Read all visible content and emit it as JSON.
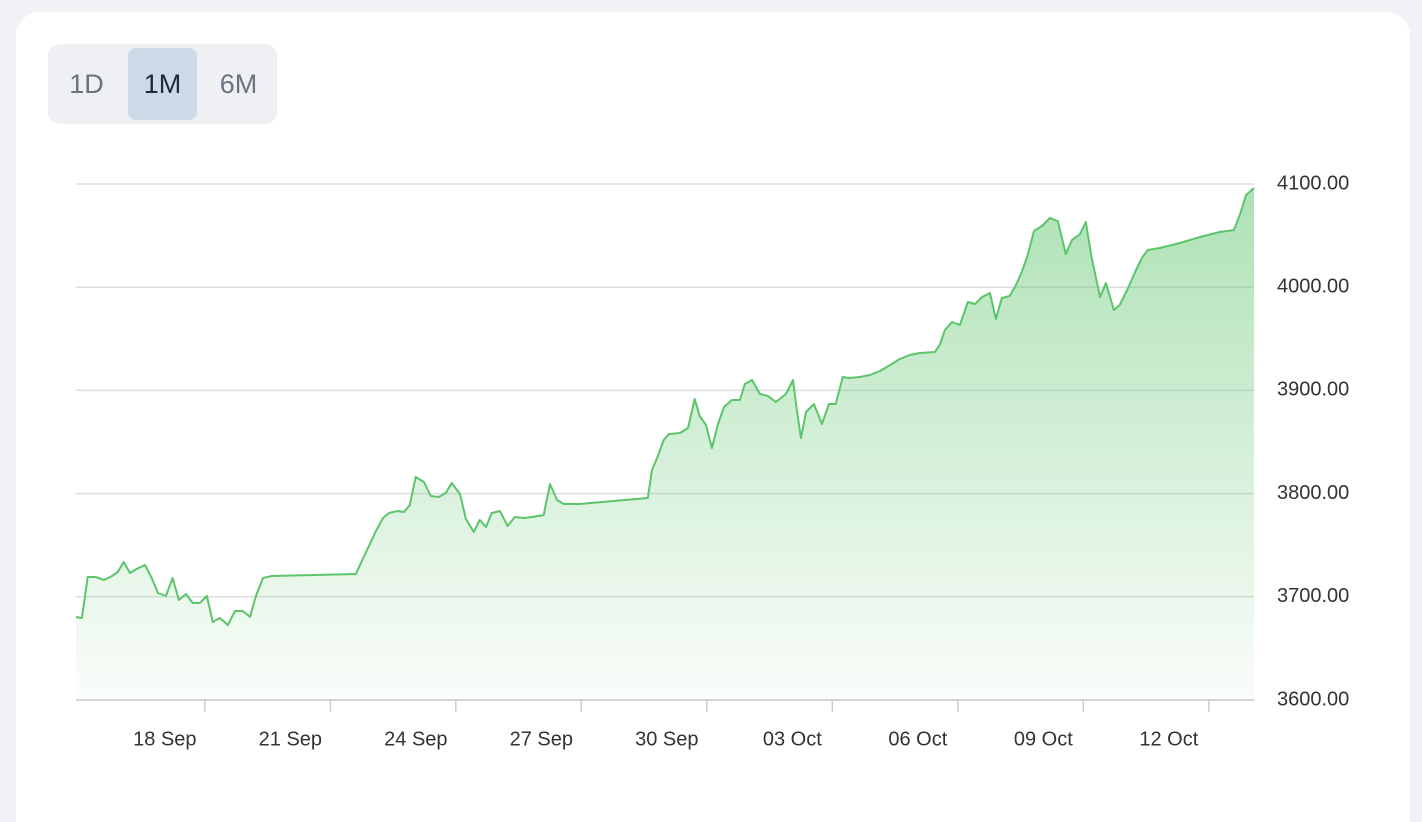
{
  "range_buttons": [
    "1D",
    "1M",
    "6M"
  ],
  "active_range": 1,
  "chart_data": {
    "type": "area",
    "color": "#5cc46a",
    "grid": true,
    "x": [
      14.92,
      15.06,
      15.2,
      15.39,
      15.59,
      15.78,
      15.92,
      16.06,
      16.21,
      16.37,
      16.57,
      16.73,
      16.88,
      17.07,
      17.23,
      17.38,
      17.55,
      17.71,
      17.88,
      18.05,
      18.19,
      18.36,
      18.55,
      18.72,
      18.91,
      19.08,
      19.22,
      19.39,
      19.6,
      21.61,
      21.73,
      21.9,
      22.09,
      22.26,
      22.4,
      22.61,
      22.76,
      22.9,
      23.04,
      23.24,
      23.4,
      23.59,
      23.76,
      23.9,
      24.1,
      24.24,
      24.43,
      24.57,
      24.72,
      24.86,
      25.05,
      25.24,
      25.41,
      25.63,
      25.82,
      26.1,
      26.25,
      26.42,
      26.58,
      26.96,
      28.59,
      28.69,
      28.83,
      28.97,
      29.09,
      29.36,
      29.55,
      29.71,
      29.83,
      29.98,
      30.12,
      30.26,
      30.41,
      30.6,
      30.79,
      30.91,
      31.08,
      31.27,
      31.46,
      31.65,
      31.89,
      32.06,
      32.15,
      32.25,
      32.37,
      32.56,
      32.75,
      32.92,
      33.08,
      33.25,
      33.4,
      33.66,
      33.9,
      34.14,
      34.38,
      34.61,
      34.85,
      35.09,
      35.45,
      35.57,
      35.69,
      35.86,
      36.05,
      36.24,
      36.41,
      36.58,
      36.77,
      36.91,
      37.05,
      37.24,
      37.39,
      37.53,
      37.67,
      37.82,
      38.01,
      38.2,
      38.39,
      38.58,
      38.73,
      38.92,
      39.06,
      39.2,
      39.4,
      39.54,
      39.73,
      39.87,
      40.07,
      40.26,
      40.4,
      40.54,
      40.83,
      41.31,
      41.79,
      42.26,
      42.6,
      42.74,
      42.89,
      43.08
    ],
    "values": [
      3680.4,
      3679.5,
      3719.2,
      3719.2,
      3716.3,
      3720.2,
      3724,
      3733.7,
      3723.1,
      3727,
      3730.8,
      3718.2,
      3703.7,
      3700.8,
      3718.2,
      3696.9,
      3702.7,
      3694,
      3694,
      3700.8,
      3675.6,
      3679.5,
      3672.7,
      3686.2,
      3686.2,
      3680.4,
      3700.8,
      3718.2,
      3720.2,
      3722.1,
      3732.7,
      3747.3,
      3763.8,
      3776.4,
      3781.2,
      3783.1,
      3782.2,
      3789,
      3816.1,
      3811.2,
      3797.7,
      3796.7,
      3800.6,
      3810.3,
      3799.6,
      3775.4,
      3762.8,
      3774.4,
      3767.6,
      3781.2,
      3783.1,
      3768.6,
      3777.3,
      3776.4,
      3777.3,
      3779.3,
      3809.3,
      3793.8,
      3789.9,
      3789.9,
      3795.7,
      3822.9,
      3836.4,
      3851.9,
      3857.7,
      3858.7,
      3863.6,
      3891.7,
      3875.2,
      3866.5,
      3844.2,
      3866.5,
      3883.9,
      3890.7,
      3890.7,
      3906.2,
      3910.1,
      3896.5,
      3894.6,
      3888.8,
      3896.5,
      3910.1,
      3881,
      3853.9,
      3879.1,
      3886.8,
      3867.4,
      3886.8,
      3886.8,
      3913,
      3912,
      3913,
      3914.9,
      3918.8,
      3924.6,
      3930.4,
      3934.3,
      3936.2,
      3937.2,
      3944,
      3958.5,
      3966.3,
      3963.4,
      3985.7,
      3983.7,
      3990.5,
      3994.4,
      3969.2,
      3989.5,
      3991.5,
      4002.1,
      4014.7,
      4031.2,
      4054.5,
      4059.3,
      4067.1,
      4064.1,
      4032.2,
      4045.7,
      4051.5,
      4063.2,
      4028.3,
      3990.5,
      4004.1,
      3977.9,
      3982.8,
      3999.2,
      4016.7,
      4028.3,
      4036,
      4038,
      4042.8,
      4048.6,
      4053.5,
      4055.4,
      4070,
      4089.3,
      4096.1
    ],
    "xlim": [
      14.92,
      43.08
    ],
    "xticks": [
      {
        "value": 18,
        "label": "18 Sep"
      },
      {
        "value": 21,
        "label": "21 Sep"
      },
      {
        "value": 24,
        "label": "24 Sep"
      },
      {
        "value": 27,
        "label": "27 Sep"
      },
      {
        "value": 30,
        "label": "30 Sep"
      },
      {
        "value": 33,
        "label": "03 Oct"
      },
      {
        "value": 36,
        "label": "06 Oct"
      },
      {
        "value": 39,
        "label": "09 Oct"
      },
      {
        "value": 42,
        "label": "12 Oct"
      }
    ],
    "ylim": [
      3600,
      4100
    ],
    "yticks": [
      {
        "value": 3600,
        "label": "3600.00"
      },
      {
        "value": 3700,
        "label": "3700.00"
      },
      {
        "value": 3800,
        "label": "3800.00"
      },
      {
        "value": 3900,
        "label": "3900.00"
      },
      {
        "value": 4000,
        "label": "4000.00"
      },
      {
        "value": 4100,
        "label": "4100.00"
      }
    ]
  }
}
